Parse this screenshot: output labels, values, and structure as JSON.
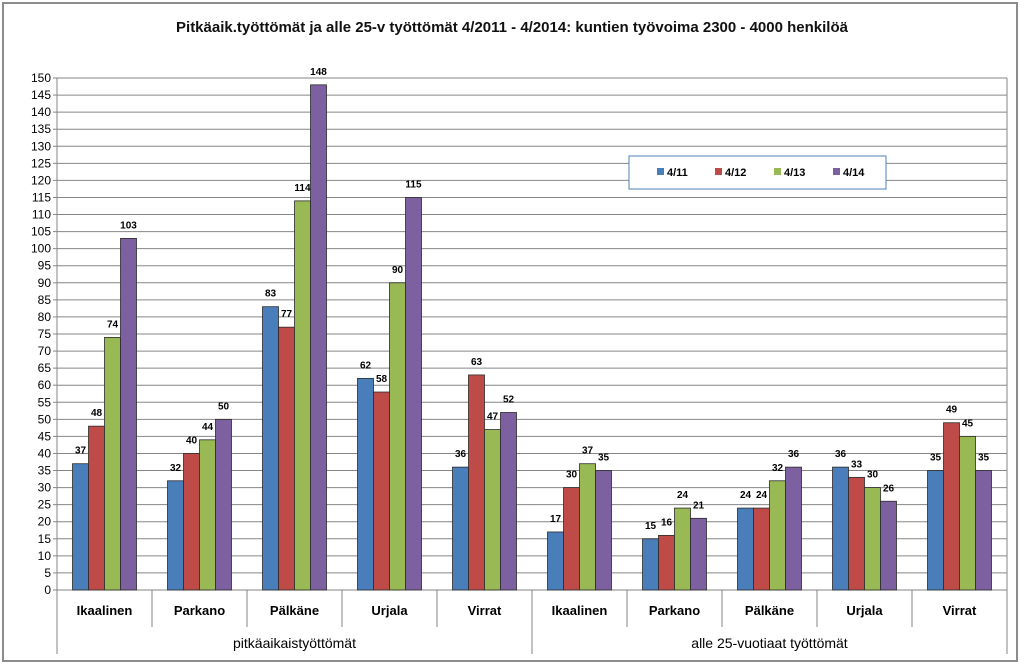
{
  "chart_data": {
    "type": "bar",
    "title": "Pitkäaik.työttömät ja alle 25-v työttömät 4/2011 - 4/2014: kuntien työvoima 2300 - 4000 henkilöä",
    "groups": [
      {
        "label": "pitkäaikaistyöttömät",
        "categories": [
          "Ikaalinen",
          "Parkano",
          "Pälkäne",
          "Urjala",
          "Virrat"
        ]
      },
      {
        "label": "alle 25-vuotiaat työttömät",
        "categories": [
          "Ikaalinen",
          "Parkano",
          "Pälkäne",
          "Urjala",
          "Virrat"
        ]
      }
    ],
    "series": [
      {
        "name": "4/11",
        "color": "#4a7ebb",
        "values": [
          37,
          32,
          83,
          62,
          36,
          17,
          15,
          24,
          36,
          35
        ]
      },
      {
        "name": "4/12",
        "color": "#be4b48",
        "values": [
          48,
          40,
          77,
          58,
          63,
          30,
          16,
          24,
          33,
          49
        ]
      },
      {
        "name": "4/13",
        "color": "#98b954",
        "values": [
          74,
          44,
          114,
          90,
          47,
          37,
          24,
          32,
          30,
          45
        ]
      },
      {
        "name": "4/14",
        "color": "#7d60a0",
        "values": [
          103,
          50,
          148,
          115,
          52,
          35,
          21,
          36,
          26,
          35
        ]
      }
    ],
    "ylim": [
      0,
      150
    ],
    "ytick_step": 5,
    "grid": true,
    "legend_position": "top-right"
  }
}
